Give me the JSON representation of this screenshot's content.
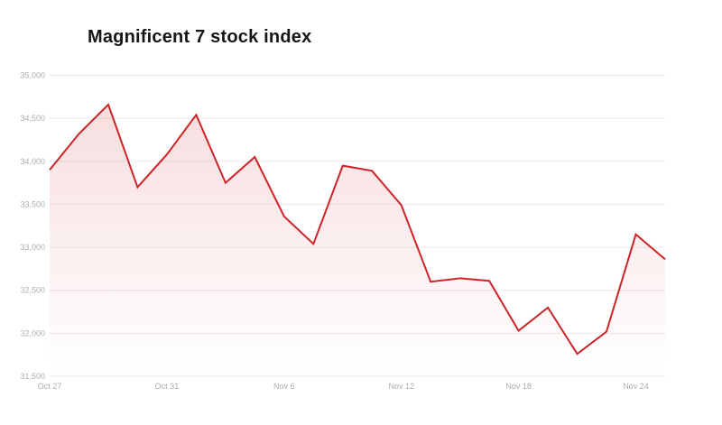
{
  "title": "Magnificent 7 stock index",
  "colors": {
    "line": "#cc2428",
    "fill_top": "rgba(204,36,40,0.17)",
    "fill_bottom": "rgba(204,36,40,0)",
    "grid": "#eaeaea",
    "tick_label": "#adadad",
    "title_text": "#161616",
    "background": "#ffffff"
  },
  "chart_data": {
    "type": "area",
    "title": "Magnificent 7 stock index",
    "xlabel": "",
    "ylabel": "",
    "x": [
      "Oct 27",
      "Oct 28",
      "Oct 29",
      "Oct 30",
      "Oct 31",
      "Nov 3",
      "Nov 4",
      "Nov 5",
      "Nov 6",
      "Nov 7",
      "Nov 10",
      "Nov 11",
      "Nov 12",
      "Nov 13",
      "Nov 14",
      "Nov 17",
      "Nov 18",
      "Nov 19",
      "Nov 20",
      "Nov 21",
      "Nov 24",
      "Nov 25"
    ],
    "values": [
      33900,
      34320,
      34660,
      33700,
      34080,
      34540,
      33750,
      34050,
      33360,
      33040,
      33950,
      33890,
      33490,
      32600,
      32640,
      32610,
      32030,
      32300,
      31760,
      32020,
      33150,
      32860
    ],
    "ylim": [
      31500,
      35000
    ],
    "y_ticks": [
      35000,
      34500,
      34000,
      33500,
      33000,
      32500,
      32000,
      31500
    ],
    "y_tick_labels": [
      "35,000",
      "34,500",
      "34,000",
      "33,500",
      "33,000",
      "32,500",
      "32,000",
      "31,500"
    ],
    "x_tick_labels": [
      "Oct 27",
      "Oct 31",
      "Nov 6",
      "Nov 12",
      "Nov 18",
      "Nov 24"
    ],
    "x_tick_indices": [
      0,
      4,
      8,
      12,
      16,
      20
    ],
    "grid": true,
    "legend": false
  }
}
